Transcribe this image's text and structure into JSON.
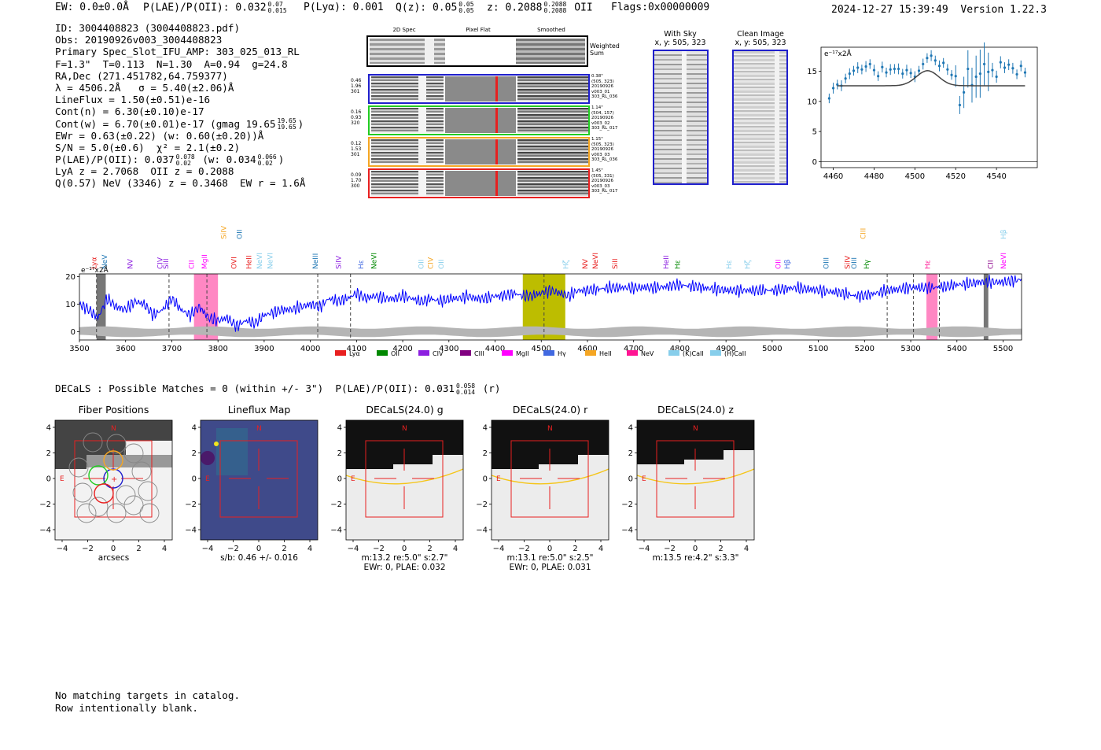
{
  "header": {
    "ew": "EW: 0.0±0.0Å",
    "plae_label": "P(LAE)/P(OII): 0.032",
    "plae_hi": "0.07",
    "plae_lo": "0.015",
    "plya": "P(Lyα): 0.001",
    "qz_label": "Q(z): 0.05",
    "qz_hi": "0.05",
    "qz_lo": "0.05",
    "z_label": "z: 0.2088",
    "z_hi": "0.2088",
    "z_lo": "0.2088",
    "z_line": "OII",
    "flags": "Flags:0x00000009",
    "timestamp": "2024-12-27 15:39:49",
    "version": "Version 1.22.3"
  },
  "info": {
    "id": "ID: 3004408823 (3004408823.pdf)",
    "obs": "Obs: 20190926v003_3004408823",
    "primary": "Primary Spec_Slot_IFU_AMP: 303_025_013_RL",
    "fwhm": "F=1.3\"  T=0.113  N=1.30  A=0.94  g=24.8",
    "radec": "RA,Dec (271.451782,64.759377)",
    "lambda": "λ = 4506.2Å   σ = 5.40(±2.06)Å",
    "lineflux": "LineFlux = 1.50(±0.51)e-16",
    "contn": "Cont(n) = 6.30(±0.10)e-17",
    "contw_label": "Cont(w) = 6.70(±0.01)e-17 (gmag 19.65",
    "contw_hi": "19.65",
    "contw_lo": "19.65",
    "ewr": "EWr = 0.63(±0.22) (w: 0.60(±0.20))Å",
    "sn": "S/N = 5.0(±0.6)  χ² = 2.1(±0.2)",
    "plae_label": "P(LAE)/P(OII): 0.037",
    "plae_hi": "0.078",
    "plae_lo": "0.02",
    "plae_w": "(w: 0.034",
    "plae_w_hi": "0.066",
    "plae_w_lo": "0.02",
    "lya": "LyA z = 2.7068  OII z = 0.2088",
    "nev": "Q(0.57) NeV (3346) z = 0.3468  EW r = 1.6Å"
  },
  "cutouts": {
    "col_2dspec": "2D Spec",
    "col_pixflat": "Pixel Flat",
    "col_smoothed": "Smoothed",
    "weighted_label": "Weighted Sum",
    "rows": [
      {
        "color": "#1f1fcc",
        "left": [
          "0.46",
          "1.96",
          "301"
        ],
        "right": [
          "0.38\"",
          "(505, 323)",
          "20190926",
          "v003_01",
          "303_RL_036"
        ]
      },
      {
        "color": "#22cc22",
        "left": [
          "0.16",
          "0.93",
          "320"
        ],
        "right": [
          "1.14\"",
          "(504, 157)",
          "20190926",
          "v003_02",
          "303_RL_017"
        ]
      },
      {
        "color": "#f5a623",
        "left": [
          "0.12",
          "1.53",
          "301"
        ],
        "right": [
          "1.15\"",
          "(505, 323)",
          "20190926",
          "v003_03",
          "303_RL_036"
        ]
      },
      {
        "color": "#e82020",
        "left": [
          "0.09",
          "1.70",
          "300"
        ],
        "right": [
          "1.45\"",
          "(505, 331)",
          "20190926",
          "v003_03",
          "303_RL_017"
        ]
      }
    ]
  },
  "sky": {
    "with_sky_title": "With Sky",
    "with_sky_coords": "x, y: 505, 323",
    "clean_title": "Clean Image",
    "clean_coords": "x, y: 505, 323"
  },
  "zoom_chart": {
    "unit_label": "e⁻¹⁷x2Å"
  },
  "full_spec": {
    "unit_label": "e⁻¹⁷x2Å"
  },
  "decals": {
    "summary": "DECaLS : Possible Matches = 0 (within +/- 3\")  P(LAE)/P(OII): 0.031",
    "summary_hi": "0.058",
    "summary_lo": "0.014",
    "summary_band": "(r)"
  },
  "panels": [
    {
      "title": "Fiber Positions",
      "xlabel": "arcsecs",
      "caption2": ""
    },
    {
      "title": "Lineflux Map",
      "xlabel": "s/b: 0.46 +/- 0.016",
      "caption2": ""
    },
    {
      "title": "DECaLS(24.0) g",
      "xlabel": "m:13.2  re:5.0\"  s:2.7\"",
      "caption2": "EWr: 0, PLAE: 0.032"
    },
    {
      "title": "DECaLS(24.0) r",
      "xlabel": "m:13.1  re:5.0\"  s:2.5\"",
      "caption2": "EWr: 0, PLAE: 0.031"
    },
    {
      "title": "DECaLS(24.0) z",
      "xlabel": "m:13.5  re:4.2\"  s:3.3\"",
      "caption2": ""
    }
  ],
  "panel_common": {
    "north": "N",
    "east": "E",
    "yticks": [
      "4",
      "2",
      "0",
      "−2",
      "−4"
    ],
    "xticks": [
      "−4",
      "−2",
      "0",
      "2",
      "4"
    ]
  },
  "footer": {
    "line1": "No matching targets in catalog.",
    "line2": "Row intentionally blank."
  },
  "chart_data": [
    {
      "id": "zoom",
      "type": "scatter",
      "title": "",
      "ylabel": "e⁻¹⁷x2Å",
      "xlim": [
        4454,
        4560
      ],
      "ylim": [
        -1,
        19
      ],
      "xticks": [
        4460,
        4480,
        4500,
        4520,
        4540
      ],
      "yticks": [
        0,
        5,
        10,
        15
      ],
      "grid": false,
      "series": [
        {
          "name": "data",
          "x": [
            4458,
            4460,
            4462,
            4464,
            4466,
            4468,
            4470,
            4472,
            4474,
            4476,
            4478,
            4480,
            4482,
            4484,
            4486,
            4488,
            4490,
            4492,
            4494,
            4496,
            4498,
            4500,
            4502,
            4504,
            4506,
            4508,
            4510,
            4512,
            4514,
            4516,
            4518,
            4520,
            4522,
            4524,
            4526,
            4528,
            4530,
            4532,
            4534,
            4536,
            4538,
            4540,
            4542,
            4544,
            4546,
            4548,
            4550,
            4552,
            4554
          ],
          "y": [
            10.5,
            12.2,
            12.8,
            12.6,
            13.8,
            14.6,
            15.1,
            15.6,
            15.3,
            15.8,
            16.2,
            15.2,
            14.2,
            15.7,
            14.8,
            15.3,
            15.4,
            15.4,
            14.6,
            15.2,
            14.7,
            14.1,
            15.1,
            16.2,
            17.2,
            17.6,
            16.8,
            15.9,
            16.4,
            15.3,
            14.4,
            14.2,
            9.4,
            11.5,
            15.4,
            12.7,
            14.1,
            14.6,
            16.2,
            14.9,
            15.2,
            14.1,
            16.5,
            15.6,
            16.1,
            15.5,
            14.5,
            15.9,
            14.8
          ],
          "err": [
            0.8,
            0.9,
            0.8,
            0.9,
            0.8,
            0.9,
            0.8,
            0.9,
            0.8,
            0.9,
            0.8,
            0.9,
            0.8,
            0.9,
            0.8,
            0.9,
            0.8,
            0.9,
            0.8,
            0.9,
            0.8,
            0.9,
            0.8,
            0.9,
            0.8,
            0.9,
            0.8,
            0.9,
            0.8,
            0.9,
            0.8,
            1.8,
            1.5,
            2.6,
            3.1,
            2.9,
            3.5,
            4.0,
            3.6,
            3.2,
            1.2,
            1.0,
            1.0,
            0.9,
            0.9,
            0.9,
            0.8,
            0.9,
            0.8
          ],
          "color": "#1f77b4"
        },
        {
          "name": "fit",
          "type": "line",
          "center": 4506.2,
          "sigma": 5.4,
          "base": 12.6,
          "amp": 2.5,
          "xrange": [
            4462,
            4554
          ],
          "color": "#444444"
        }
      ]
    },
    {
      "id": "full",
      "type": "line",
      "ylabel": "e⁻¹⁷x2Å",
      "xlim": [
        3500,
        5540
      ],
      "ylim": [
        -3,
        21
      ],
      "xticks": [
        3500,
        3600,
        3700,
        3800,
        3900,
        4000,
        4100,
        4200,
        4300,
        4400,
        4500,
        4600,
        4700,
        4800,
        4900,
        5000,
        5100,
        5200,
        5300,
        5400,
        5500
      ],
      "yticks": [
        0,
        10,
        20
      ],
      "spectrum_knots": {
        "x": [
          3500,
          3520,
          3540,
          3560,
          3580,
          3600,
          3620,
          3640,
          3660,
          3680,
          3700,
          3720,
          3740,
          3760,
          3780,
          3800,
          3820,
          3840,
          3860,
          3880,
          3900,
          3920,
          3940,
          3960,
          3980,
          4000,
          4020,
          4040,
          4060,
          4080,
          4100,
          4120,
          4140,
          4160,
          4180,
          4200,
          4220,
          4240,
          4260,
          4280,
          4300,
          4320,
          4340,
          4360,
          4380,
          4400,
          4420,
          4440,
          4460,
          4480,
          4500,
          4520,
          4540,
          4560,
          4580,
          4600,
          4650,
          4700,
          4750,
          4800,
          4850,
          4900,
          4950,
          5000,
          5050,
          5100,
          5150,
          5180,
          5200,
          5250,
          5300,
          5350,
          5400,
          5450,
          5500,
          5540
        ],
        "y": [
          10,
          8,
          5,
          12,
          9,
          8,
          11,
          10,
          6,
          8,
          12,
          8,
          6,
          9,
          5,
          4,
          5,
          2,
          4,
          3,
          6,
          7,
          8,
          8,
          9,
          10,
          9,
          12,
          11,
          12,
          14,
          12,
          13,
          12,
          12,
          13,
          12,
          11,
          12,
          11,
          12,
          12,
          13,
          12,
          12,
          13,
          13,
          14,
          13,
          13,
          14,
          15,
          14,
          13,
          15,
          15,
          16,
          16,
          16,
          17,
          16,
          15,
          15,
          15,
          16,
          15,
          14,
          13,
          13,
          15,
          16,
          16,
          17,
          18,
          18,
          19
        ]
      },
      "noise_envelope": 1.5,
      "yellow_band": [
        4460,
        4552
      ],
      "pink_bands": [
        [
          3748,
          3800
        ],
        [
          5334,
          5358
        ]
      ],
      "hatched_bands": [
        [
          3537,
          3557
        ],
        [
          5458,
          5468
        ]
      ],
      "dashed_lines": [
        3537,
        3694,
        3776,
        4016,
        4087,
        4506,
        5249,
        5306,
        5362
      ],
      "line_labels": [
        {
          "text": "Lyα",
          "x": 3537,
          "color": "#e82020",
          "row": 0
        },
        {
          "text": "NeV",
          "x": 3560,
          "color": "#1f77b4",
          "row": 0
        },
        {
          "text": "NV",
          "x": 3615,
          "color": "#8c1fe0",
          "row": 0
        },
        {
          "text": "CIV",
          "x": 3680,
          "color": "#8c1fe0",
          "row": 0
        },
        {
          "text": "SiII",
          "x": 3692,
          "color": "#8c1fe0",
          "row": 0
        },
        {
          "text": "CII",
          "x": 3748,
          "color": "#ff00ff",
          "row": 0
        },
        {
          "text": "MgII",
          "x": 3776,
          "color": "#ff00ff",
          "row": 0
        },
        {
          "text": "SiIV",
          "x": 3818,
          "color": "#f5a623",
          "row": 1
        },
        {
          "text": "OVI",
          "x": 3840,
          "color": "#e82020",
          "row": 0
        },
        {
          "text": "OII",
          "x": 3852,
          "color": "#1f77b4",
          "row": 1
        },
        {
          "text": "HeII",
          "x": 3872,
          "color": "#e82020",
          "row": 0
        },
        {
          "text": "NeVI",
          "x": 3895,
          "color": "#87ceeb",
          "row": 0
        },
        {
          "text": "NeVI",
          "x": 3918,
          "color": "#87ceeb",
          "row": 0
        },
        {
          "text": "NeIII",
          "x": 4016,
          "color": "#1f77b4",
          "row": 0
        },
        {
          "text": "SiIV",
          "x": 4066,
          "color": "#8c1fe0",
          "row": 0
        },
        {
          "text": "Hε",
          "x": 4115,
          "color": "#4169e1",
          "row": 0
        },
        {
          "text": "NeVI",
          "x": 4143,
          "color": "#008800",
          "row": 0
        },
        {
          "text": "OII",
          "x": 4245,
          "color": "#87ceeb",
          "row": 0
        },
        {
          "text": "CIV",
          "x": 4265,
          "color": "#f5a623",
          "row": 0
        },
        {
          "text": "OII",
          "x": 4288,
          "color": "#87ceeb",
          "row": 0
        },
        {
          "text": "Hζ",
          "x": 4558,
          "color": "#87ceeb",
          "row": 0
        },
        {
          "text": "NV",
          "x": 4600,
          "color": "#e82020",
          "row": 0
        },
        {
          "text": "NeVI",
          "x": 4622,
          "color": "#e82020",
          "row": 0
        },
        {
          "text": "SiII",
          "x": 4665,
          "color": "#e82020",
          "row": 0
        },
        {
          "text": "HeII",
          "x": 4775,
          "color": "#8c1fe0",
          "row": 0
        },
        {
          "text": "Hε",
          "x": 4800,
          "color": "#008800",
          "row": 0
        },
        {
          "text": "Hε",
          "x": 4912,
          "color": "#87ceeb",
          "row": 0
        },
        {
          "text": "Hζ",
          "x": 4952,
          "color": "#87ceeb",
          "row": 0
        },
        {
          "text": "OII",
          "x": 5018,
          "color": "#ff00ff",
          "row": 0
        },
        {
          "text": "Hβ",
          "x": 5038,
          "color": "#4169e1",
          "row": 0
        },
        {
          "text": "OIII",
          "x": 5122,
          "color": "#1f77b4",
          "row": 0
        },
        {
          "text": "SiIV",
          "x": 5168,
          "color": "#e82020",
          "row": 0
        },
        {
          "text": "OIII",
          "x": 5182,
          "color": "#1f77b4",
          "row": 0
        },
        {
          "text": "Hγ",
          "x": 5210,
          "color": "#008800",
          "row": 0
        },
        {
          "text": "CIII",
          "x": 5202,
          "color": "#f5a623",
          "row": 1
        },
        {
          "text": "Hε",
          "x": 5342,
          "color": "#ff1493",
          "row": 0
        },
        {
          "text": "CII",
          "x": 5478,
          "color": "#8b008b",
          "row": 0
        },
        {
          "text": "NeVI",
          "x": 5506,
          "color": "#ff00ff",
          "row": 0
        },
        {
          "text": "Hβ",
          "x": 5506,
          "color": "#87ceeb",
          "row": 1
        }
      ],
      "legend": [
        {
          "label": "Lyα",
          "color": "#e82020"
        },
        {
          "label": "OII",
          "color": "#008800"
        },
        {
          "label": "CIV",
          "color": "#8c1fe0"
        },
        {
          "label": "CIII",
          "color": "#800080"
        },
        {
          "label": "MgII",
          "color": "#ff00ff"
        },
        {
          "label": "Hγ",
          "color": "#4169e1"
        },
        {
          "label": "HeII",
          "color": "#f5a623"
        },
        {
          "label": "NeV",
          "color": "#ff1493"
        },
        {
          "label": "(K)CaII",
          "color": "#87ceeb"
        },
        {
          "label": "(H)CaII",
          "color": "#87ceeb"
        }
      ]
    }
  ]
}
